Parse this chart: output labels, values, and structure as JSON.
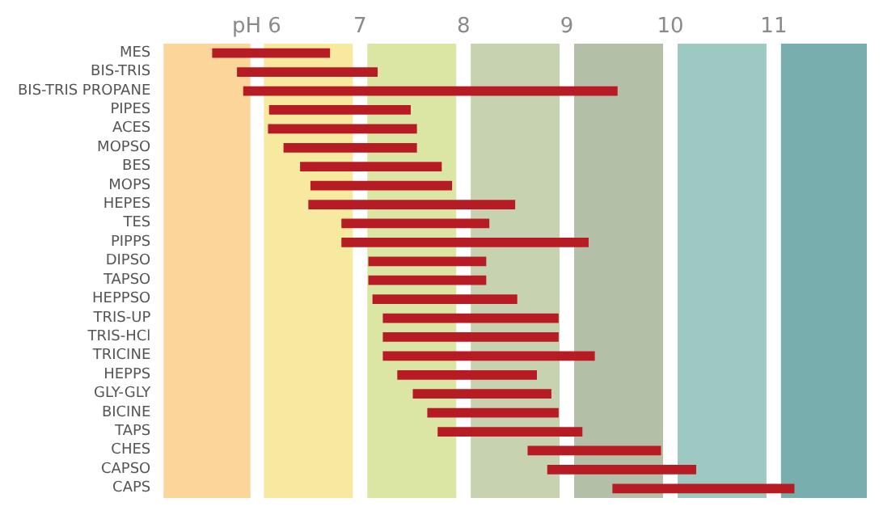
{
  "chart_data": {
    "type": "bar",
    "orientation": "horizontal",
    "color": "#b71c24",
    "categories": [
      "MES",
      "BIS-TRIS",
      "BIS-TRIS PROPANE",
      "PIPES",
      "ACES",
      "MOPSO",
      "BES",
      "MOPS",
      "HEPES",
      "TES",
      "PIPPS",
      "DIPSO",
      "TAPSO",
      "HEPPSO",
      "TRIS-UP",
      "TRIS-HCl",
      "TRICINE",
      "HEPPS",
      "GLY-GLY",
      "BICINE",
      "TAPS",
      "CHES",
      "CAPSO",
      "CAPS"
    ],
    "base": [
      5.57,
      5.81,
      5.87,
      6.12,
      6.11,
      6.26,
      6.42,
      6.52,
      6.5,
      6.82,
      6.82,
      7.08,
      7.08,
      7.12,
      7.22,
      7.22,
      7.22,
      7.36,
      7.51,
      7.65,
      7.75,
      8.62,
      8.81,
      9.44
    ],
    "values": [
      1.14,
      1.36,
      3.62,
      1.37,
      1.44,
      1.29,
      1.37,
      1.37,
      2.0,
      1.43,
      2.39,
      1.14,
      1.14,
      1.4,
      1.7,
      1.7,
      2.05,
      1.35,
      1.34,
      1.27,
      1.4,
      1.29,
      1.44,
      1.76
    ],
    "xlim": [
      5.1,
      11.9
    ],
    "xticks": [
      {
        "value": 6,
        "label": "pH 6"
      },
      7,
      8,
      9,
      10,
      11
    ],
    "bands": [
      {
        "axis": "x",
        "from": 5.1,
        "to": 5.94,
        "color": "#fcd59a"
      },
      {
        "axis": "x",
        "from": 6.07,
        "to": 6.93,
        "color": "#f8e9a0"
      },
      {
        "axis": "x",
        "from": 7.07,
        "to": 7.93,
        "color": "#dbe6a4"
      },
      {
        "axis": "x",
        "from": 8.07,
        "to": 8.93,
        "color": "#c7d2b0"
      },
      {
        "axis": "x",
        "from": 9.07,
        "to": 9.93,
        "color": "#b4bfa8"
      },
      {
        "axis": "x",
        "from": 10.07,
        "to": 10.93,
        "color": "#9ec9c2"
      },
      {
        "axis": "x",
        "from": 11.07,
        "to": 11.9,
        "color": "#78afae"
      }
    ],
    "grid": false
  }
}
